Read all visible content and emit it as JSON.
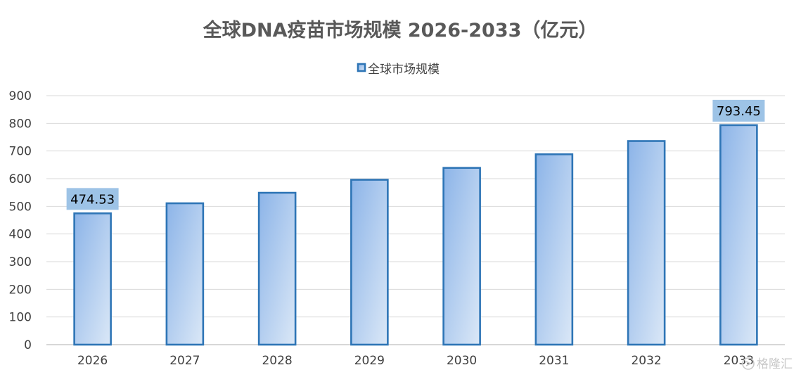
{
  "chart_data": {
    "type": "bar",
    "title": "全球DNA疫苗市场规模 2026-2033（亿元）",
    "categories": [
      "2026",
      "2027",
      "2028",
      "2029",
      "2030",
      "2031",
      "2032",
      "2033"
    ],
    "series": [
      {
        "name": "全球市场规模",
        "values": [
          474.53,
          511,
          549,
          596,
          639,
          688,
          736,
          793.45
        ]
      }
    ],
    "data_labels": [
      {
        "category": "2026",
        "text": "474.53"
      },
      {
        "category": "2033",
        "text": "793.45"
      }
    ],
    "ylim": [
      0,
      900
    ],
    "yticks": [
      "0",
      "100",
      "200",
      "300",
      "400",
      "500",
      "600",
      "700",
      "800",
      "900"
    ],
    "grid": true,
    "legend_position": "top",
    "colors": {
      "bar_border": "#2e75b6",
      "bar_fill_light": "#dbe8f7",
      "bar_fill_dark": "#8cb4e8",
      "label_box": "#9dc3e6",
      "grid": "#d9d9d9"
    }
  },
  "watermark": "格隆汇",
  "watermark_icon": "gelonghui-logo-icon"
}
